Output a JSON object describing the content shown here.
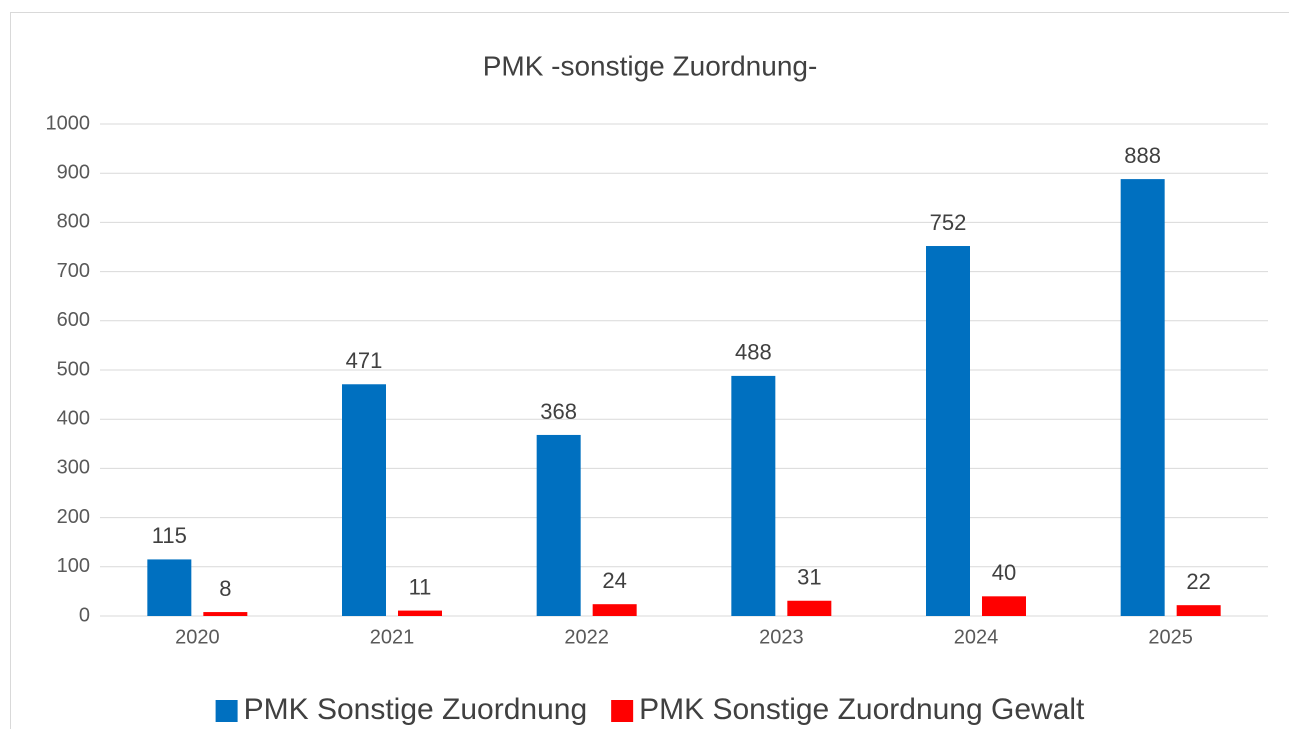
{
  "chart_data": {
    "type": "bar",
    "title": "PMK -sonstige Zuordnung-",
    "categories": [
      "2020",
      "2021",
      "2022",
      "2023",
      "2024",
      "2025"
    ],
    "series": [
      {
        "name": "PMK Sonstige Zuordnung",
        "color": "#0070c0",
        "values": [
          115,
          471,
          368,
          488,
          752,
          888
        ]
      },
      {
        "name": "PMK Sonstige Zuordnung Gewalt",
        "color": "#ff0000",
        "values": [
          8,
          11,
          24,
          31,
          40,
          22
        ]
      }
    ],
    "ylim": [
      0,
      1000
    ],
    "yticks": [
      0,
      100,
      200,
      300,
      400,
      500,
      600,
      700,
      800,
      900,
      1000
    ],
    "grid": true,
    "legend": "bottom"
  }
}
